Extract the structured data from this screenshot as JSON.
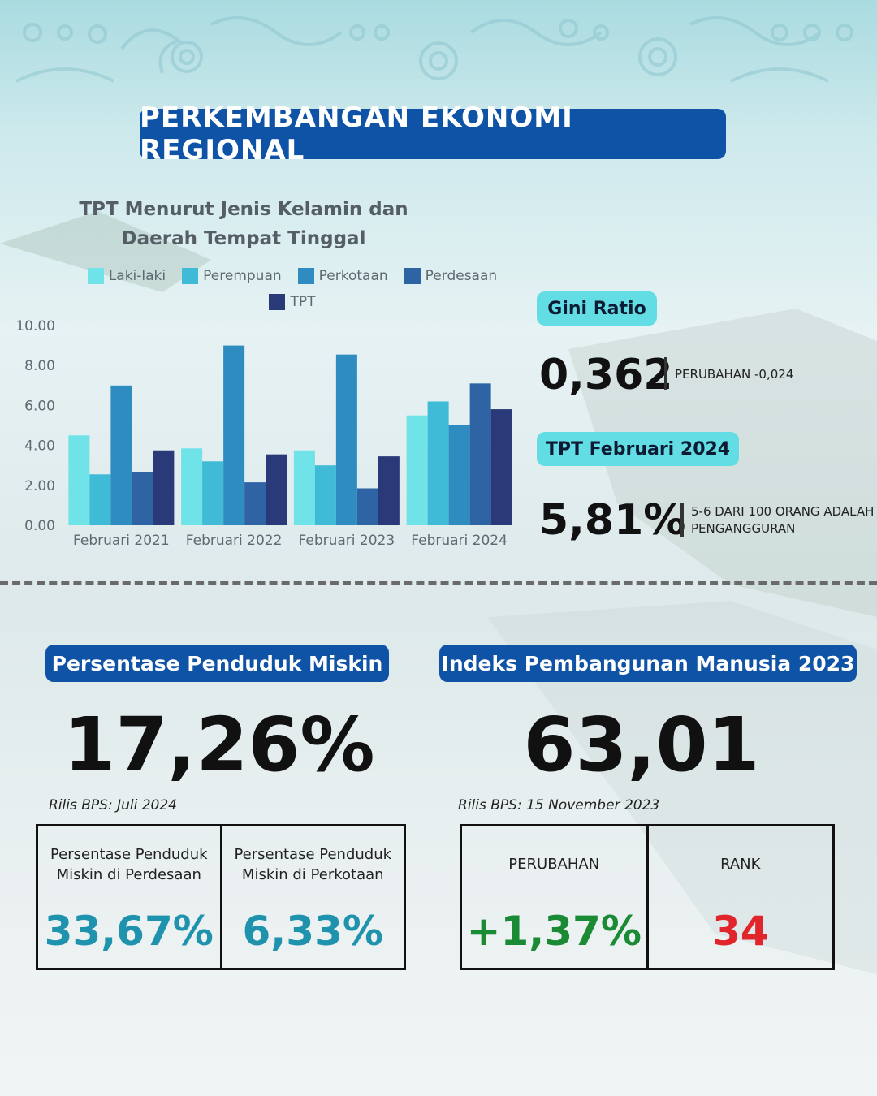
{
  "title": "PERKEMBANGAN EKONOMI REGIONAL",
  "chart_data": {
    "type": "bar",
    "title": "TPT Menurut Jenis Kelamin dan Daerah Tempat Tinggal",
    "xlabel": "",
    "ylabel": "",
    "ylim": [
      0,
      10
    ],
    "yticks": [
      "10.00",
      "8.00",
      "6.00",
      "4.00",
      "2.00",
      "0.00"
    ],
    "grid": false,
    "legend_position": "top",
    "categories": [
      "Februari 2021",
      "Februari 2022",
      "Februari 2023",
      "Februari 2024"
    ],
    "series": [
      {
        "name": "Laki-laki",
        "color": "#6fe3e8",
        "values": [
          4.5,
          3.85,
          3.75,
          5.5
        ]
      },
      {
        "name": "Perempuan",
        "color": "#3fbbd8",
        "values": [
          2.55,
          3.2,
          3.0,
          6.2
        ]
      },
      {
        "name": "Perkotaan",
        "color": "#2f8cc0",
        "values": [
          7.0,
          9.0,
          8.55,
          5.0
        ]
      },
      {
        "name": "Perdesaan",
        "color": "#2e64a4",
        "values": [
          2.65,
          2.15,
          1.85,
          7.1
        ]
      },
      {
        "name": "TPT",
        "color": "#2a3a78",
        "values": [
          3.75,
          3.55,
          3.45,
          5.81
        ]
      }
    ]
  },
  "gini": {
    "label": "Gini Ratio",
    "value": "0,362",
    "note": "PERUBAHAN -0,024"
  },
  "tpt": {
    "label": "TPT Februari 2024",
    "value": "5,81%",
    "note_line1": "5-6 DARI 100 ORANG ADALAH",
    "note_line2": "PENGANGGURAN"
  },
  "poverty": {
    "label": "Persentase Penduduk Miskin",
    "value": "17,26%",
    "release": "Rilis BPS: Juli 2024",
    "cells": [
      {
        "label_line1": "Persentase Penduduk",
        "label_line2": "Miskin di Perdesaan",
        "value": "33,67%",
        "color": "#1f93ad"
      },
      {
        "label_line1": "Persentase Penduduk",
        "label_line2": "Miskin di Perkotaan",
        "value": "6,33%",
        "color": "#1f93ad"
      }
    ]
  },
  "hdi": {
    "label": "Indeks Pembangunan Manusia 2023",
    "value": "63,01",
    "release": "Rilis BPS: 15 November 2023",
    "cells": [
      {
        "label": "PERUBAHAN",
        "value": "+1,37%",
        "color": "#1a8a35"
      },
      {
        "label": "RANK",
        "value": "34",
        "color": "#e0262b"
      }
    ]
  }
}
